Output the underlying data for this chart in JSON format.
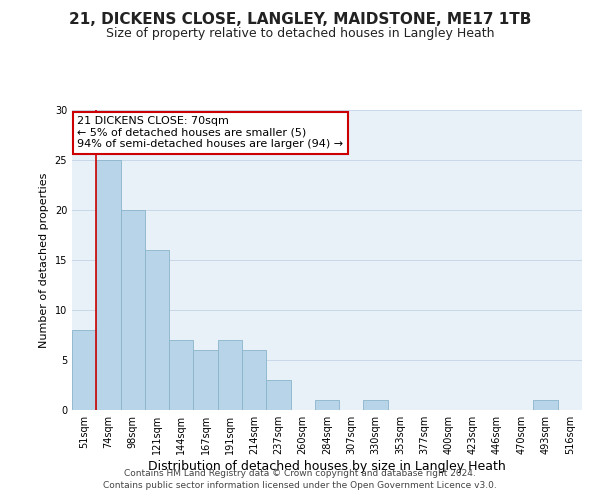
{
  "title": "21, DICKENS CLOSE, LANGLEY, MAIDSTONE, ME17 1TB",
  "subtitle": "Size of property relative to detached houses in Langley Heath",
  "xlabel": "Distribution of detached houses by size in Langley Heath",
  "ylabel": "Number of detached properties",
  "bar_labels": [
    "51sqm",
    "74sqm",
    "98sqm",
    "121sqm",
    "144sqm",
    "167sqm",
    "191sqm",
    "214sqm",
    "237sqm",
    "260sqm",
    "284sqm",
    "307sqm",
    "330sqm",
    "353sqm",
    "377sqm",
    "400sqm",
    "423sqm",
    "446sqm",
    "470sqm",
    "493sqm",
    "516sqm"
  ],
  "bar_values": [
    8,
    25,
    20,
    16,
    7,
    6,
    7,
    6,
    3,
    0,
    1,
    0,
    1,
    0,
    0,
    0,
    0,
    0,
    0,
    1,
    0
  ],
  "bar_color": "#b8d4e8",
  "bar_edge_color": "#8ab4cc",
  "ylim": [
    0,
    30
  ],
  "yticks": [
    0,
    5,
    10,
    15,
    20,
    25,
    30
  ],
  "annotation_line1": "21 DICKENS CLOSE: 70sqm",
  "annotation_line2": "← 5% of detached houses are smaller (5)",
  "annotation_line3": "94% of semi-detached houses are larger (94) →",
  "annotation_box_color": "#ffffff",
  "annotation_box_edge": "#cc0000",
  "red_line_index": 1,
  "footer_line1": "Contains HM Land Registry data © Crown copyright and database right 2024.",
  "footer_line2": "Contains public sector information licensed under the Open Government Licence v3.0.",
  "title_fontsize": 11,
  "subtitle_fontsize": 9,
  "xlabel_fontsize": 9,
  "ylabel_fontsize": 8,
  "tick_fontsize": 7,
  "annotation_fontsize": 8,
  "footer_fontsize": 6.5,
  "grid_color": "#c8d8e8",
  "fig_bg_color": "#ffffff",
  "axes_bg_color": "#e8f0f8"
}
